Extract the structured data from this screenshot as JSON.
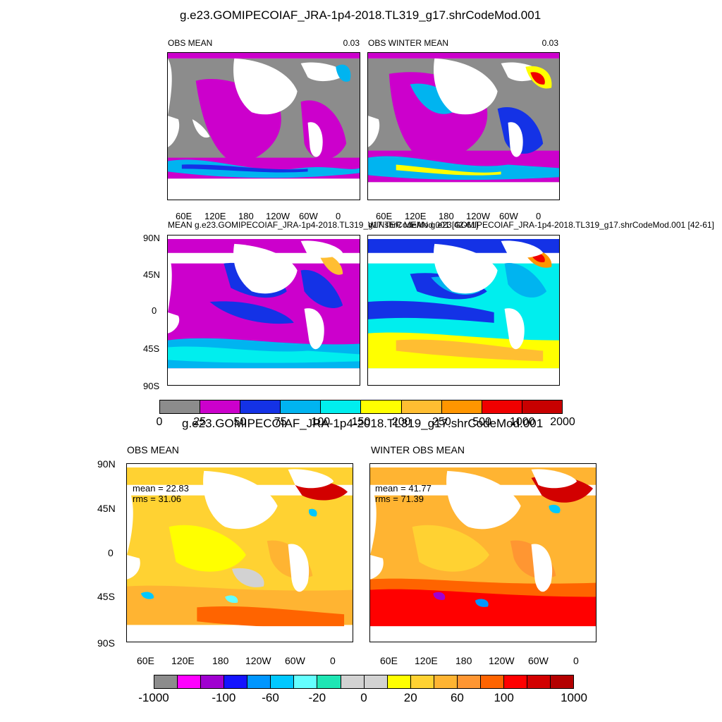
{
  "figure1": {
    "title": "g.e23.GOMIPECOIAF_JRA-1p4-2018.TL319_g17.shrCodeMod.001",
    "panels": [
      {
        "title": "OBS MEAN",
        "value": "0.03"
      },
      {
        "title": "OBS WINTER MEAN",
        "value": "0.03"
      },
      {
        "title": "MEAN g.e23.GOMIPECOIAF_JRA-1p4-2018.TL319_g17.shrCodeMod.001 [42-61]"
      },
      {
        "title": "WINTER MEAN g.e23.GOMIPECOIAF_JRA-1p4-2018.TL319_g17.shrCodeMod.001 [42-61]"
      }
    ],
    "lon_ticks": [
      "60E",
      "120E",
      "180",
      "120W",
      "60W",
      "0"
    ],
    "lat_ticks": [
      "90N",
      "45N",
      "0",
      "45S",
      "90S"
    ],
    "colorbar": {
      "labels": [
        "0",
        "25",
        "50",
        "75",
        "100",
        "150",
        "200",
        "250",
        "500",
        "1000",
        "2000"
      ],
      "colors": [
        "#8c8c8c",
        "#cc00cc",
        "#1432e6",
        "#00b4f0",
        "#00eeee",
        "#ffff00",
        "#ffbe32",
        "#ff9600",
        "#f00000",
        "#c80000"
      ]
    }
  },
  "figure2": {
    "title": "g.e23.GOMIPECOIAF_JRA-1p4-2018.TL319_g17.shrCodeMod.001",
    "panels": [
      {
        "title": "OBS MEAN",
        "mean": "mean = 22.83",
        "rms": "rms = 31.06"
      },
      {
        "title": "WINTER OBS MEAN",
        "mean": "mean = 41.77",
        "rms": "rms = 71.39"
      }
    ],
    "lon_ticks": [
      "60E",
      "120E",
      "180",
      "120W",
      "60W",
      "0"
    ],
    "lat_ticks": [
      "90N",
      "45N",
      "0",
      "45S",
      "90S"
    ],
    "colorbar": {
      "labels": [
        "-1000",
        "-100",
        "-60",
        "-20",
        "0",
        "20",
        "60",
        "100",
        "1000"
      ],
      "colors": [
        "#8c8c8c",
        "#ff00ff",
        "#a000d0",
        "#1414ff",
        "#0096ff",
        "#00c8ff",
        "#64ffff",
        "#1ee6b4",
        "#d2d2d2",
        "#d2d2d2",
        "#ffff00",
        "#ffd232",
        "#ffb432",
        "#ff9632",
        "#ff6400",
        "#ff0000",
        "#d20000",
        "#b40000"
      ]
    }
  }
}
